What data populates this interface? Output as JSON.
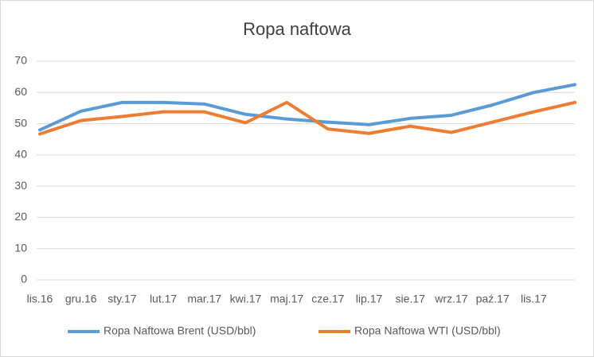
{
  "chart_data": {
    "type": "line",
    "title": "Ropa naftowa",
    "categories": [
      "lis.16",
      "gru.16",
      "sty.17",
      "lut.17",
      "mar.17",
      "kwi.17",
      "maj.17",
      "cze.17",
      "lip.17",
      "sie.17",
      "wrz.17",
      "paź.17",
      "lis.17",
      null
    ],
    "series": [
      {
        "name": "Ropa Naftowa Brent (USD/bbl)",
        "color": "#5b9bd5",
        "values": [
          48,
          54,
          56.8,
          56.8,
          56.3,
          53,
          51.5,
          50.5,
          49.7,
          51.7,
          52.7,
          56,
          60,
          62.5
        ]
      },
      {
        "name": "Ropa Naftowa WTI (USD/bbl)",
        "color": "#ed7d31",
        "values": [
          46.7,
          51,
          52.3,
          53.8,
          53.8,
          50.3,
          56.8,
          48.3,
          46.9,
          49.2,
          47.2,
          50.5,
          53.8,
          56.8
        ]
      }
    ],
    "ylim": [
      0,
      70
    ],
    "yticks": [
      0,
      10,
      20,
      30,
      40,
      50,
      60,
      70
    ],
    "grid": true,
    "legend": "bottom"
  }
}
